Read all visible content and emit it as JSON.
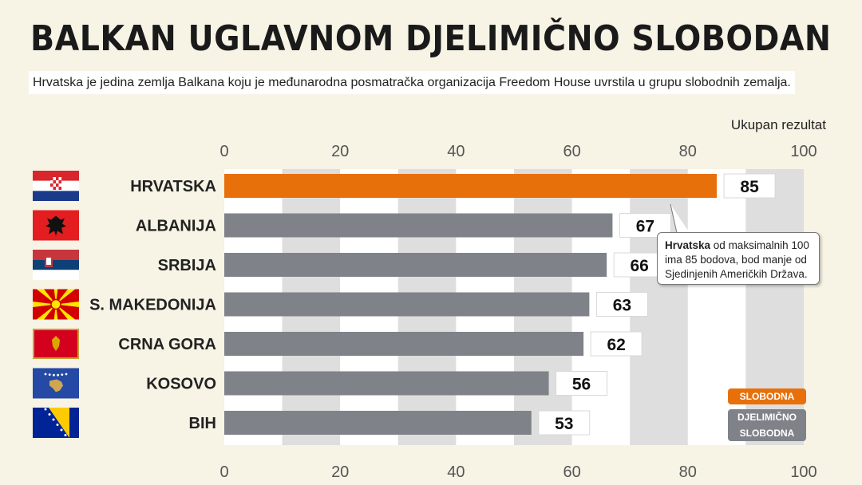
{
  "header": {
    "title": "BALKAN UGLAVNOM DJELIMIČNO SLOBODAN",
    "subtitle": "Hrvatska je jedina zemlja Balkana koju je međunarodna posmatračka organizacija Freedom House uvrstila u grupu slobodnih zemalja."
  },
  "colors": {
    "free": "#e8700a",
    "partly_free": "#7f8389",
    "stripe": "#dedede",
    "background": "#f7f3e5"
  },
  "chart_data": {
    "type": "bar",
    "orientation": "horizontal",
    "axis_caption": "Ukupan rezultat",
    "xlim": [
      0,
      100
    ],
    "ticks": [
      0,
      20,
      40,
      60,
      80,
      100
    ],
    "categories": [
      "HRVATSKA",
      "ALBANIJA",
      "SRBIJA",
      "S. MAKEDONIJA",
      "CRNA GORA",
      "KOSOVO",
      "BIH"
    ],
    "values": [
      85,
      67,
      66,
      63,
      62,
      56,
      53
    ],
    "status": [
      "free",
      "partly_free",
      "partly_free",
      "partly_free",
      "partly_free",
      "partly_free",
      "partly_free"
    ],
    "flags": [
      "croatia-flag-icon",
      "albania-flag-icon",
      "serbia-flag-icon",
      "north-macedonia-flag-icon",
      "montenegro-flag-icon",
      "kosovo-flag-icon",
      "bosnia-flag-icon"
    ],
    "legend": {
      "free": "SLOBODNA",
      "partly_free_line1": "DJELIMIČNO",
      "partly_free_line2": "SLOBODNA"
    },
    "annotation": {
      "bold": "Hrvatska",
      "line1": " od maksimalnih 100",
      "line2": "ima 85 bodova, bod manje od",
      "line3": "Sjedinjenih Američkih Država."
    }
  }
}
